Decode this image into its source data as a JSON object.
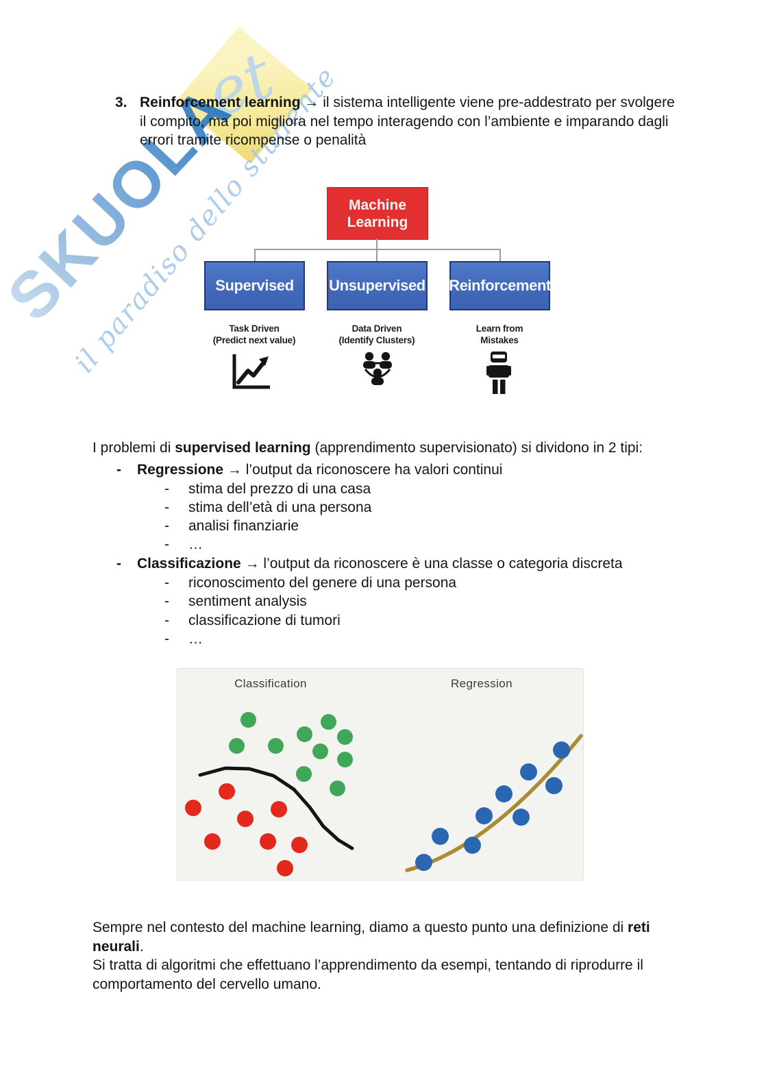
{
  "glyphs": {
    "arrow_sep": " → ",
    "dash": "-"
  },
  "watermark": {
    "brand": "SKUOLA",
    "brand_suffix": "et",
    "tagline": "il paradiso dello studente",
    "brand_color": "#2e7ac2",
    "diamond_color": "#f5e896"
  },
  "document": {
    "item3": {
      "number": "3.",
      "title": "Reinforcement learning",
      "lines": [
        "il sistema intelligente viene pre-addestrato per svolgere",
        "il compito, ma poi migliora nel tempo interagendo con l’ambiente e imparando dagli",
        "errori tramite ricompense o penalità"
      ]
    },
    "intro": {
      "pre": "I problemi di ",
      "bold": "supervised learning",
      "post": " (apprendimento supervisionato) si dividono in 2 tipi:"
    },
    "bullets": [
      {
        "label": "Regressione",
        "text": "l’output da riconoscere ha valori continui",
        "subs": [
          "stima del prezzo di una casa",
          "stima dell’età di una persona",
          "analisi finanziarie",
          "…"
        ]
      },
      {
        "label": "Classificazione",
        "text": "l’output da riconoscere è una classe o categoria discreta",
        "subs": [
          "riconoscimento del genere di una persona",
          "sentiment analysis",
          "classificazione di tumori",
          "…"
        ]
      }
    ],
    "closing": {
      "line1_pre": "Sempre nel contesto del machine learning, diamo a questo punto una definizione di ",
      "line1_bold": "reti",
      "line2_bold": "neurali",
      "line2_post": ".",
      "line3": "Si tratta di algoritmi che effettuano l’apprendimento da esempi, tentando di riprodurre il",
      "line4": "comportamento del cervello umano."
    }
  },
  "diagram": {
    "root": {
      "label": "Machine Learning",
      "color": "#e23030"
    },
    "child_color": "#4472c4",
    "children": [
      {
        "label": "Supervised",
        "caption_line1": "Task Driven",
        "caption_line2": "(Predict next value)",
        "icon": "trend-chart-icon"
      },
      {
        "label": "Unsupervised",
        "caption_line1": "Data Driven",
        "caption_line2": "(Identify Clusters)",
        "icon": "people-cluster-icon"
      },
      {
        "label": "Reinforcement",
        "caption_line1": "Learn from",
        "caption_line2": "Mistakes",
        "icon": "robot-icon"
      }
    ]
  },
  "chart_data": {
    "type": "scatter",
    "panels": [
      {
        "title": "Classification",
        "series": [
          {
            "name": "class-green",
            "color": "#3fa65a",
            "radius": 11.5,
            "points": [
              [
                103,
                74
              ],
              [
                220,
                77
              ],
              [
                185,
                95
              ],
              [
                244,
                99
              ],
              [
                86,
                112
              ],
              [
                143,
                112
              ],
              [
                208,
                120
              ],
              [
                244,
                132
              ],
              [
                184,
                153
              ],
              [
                233,
                174
              ]
            ]
          },
          {
            "name": "class-red",
            "color": "#e3281e",
            "radius": 12,
            "points": [
              [
                72,
                179
              ],
              [
                23,
                203
              ],
              [
                99,
                219
              ],
              [
                148,
                205
              ],
              [
                51,
                252
              ],
              [
                132,
                252
              ],
              [
                178,
                257
              ],
              [
                157,
                291
              ]
            ]
          }
        ],
        "boundary_color": "#141414",
        "boundary_points": [
          [
            33,
            155
          ],
          [
            70,
            145
          ],
          [
            105,
            146
          ],
          [
            140,
            156
          ],
          [
            170,
            176
          ],
          [
            193,
            202
          ],
          [
            213,
            230
          ],
          [
            235,
            250
          ],
          [
            255,
            262
          ]
        ]
      },
      {
        "title": "Regression",
        "series": [
          {
            "name": "data-blue",
            "color": "#2a66b2",
            "radius": 12.5,
            "points": [
              [
                359,
                282
              ],
              [
                383,
                244
              ],
              [
                430,
                257
              ],
              [
                447,
                214
              ],
              [
                476,
                182
              ],
              [
                501,
                216
              ],
              [
                512,
                150
              ],
              [
                549,
                170
              ],
              [
                560,
                118
              ]
            ]
          }
        ],
        "trend": {
          "start": [
            335,
            294
          ],
          "control": [
            455,
            262
          ],
          "end": [
            589,
            98
          ],
          "color": "#ab8b33"
        }
      }
    ]
  }
}
